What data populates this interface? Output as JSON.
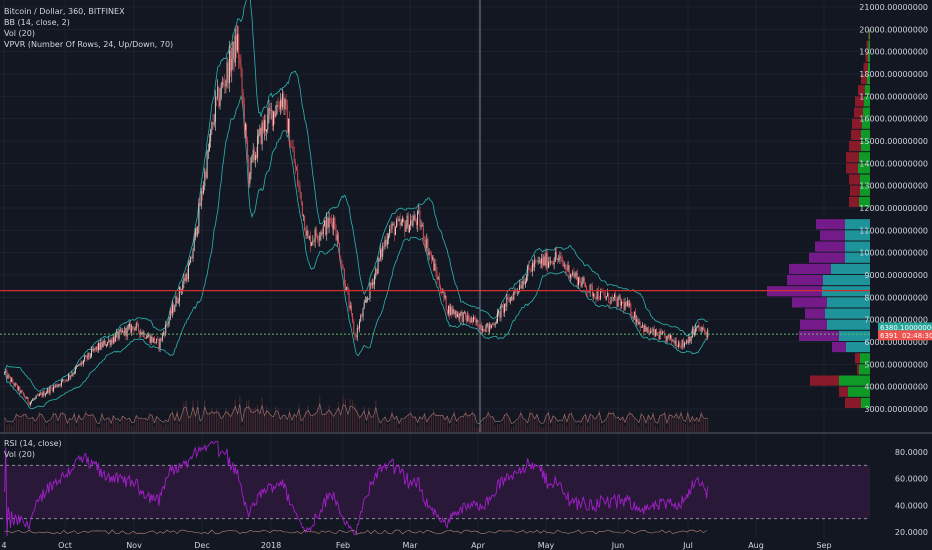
{
  "legend": {
    "title": "Bitcoin / Dollar, 360, BITFINEX",
    "bb": "BB (14, close, 2)",
    "vol": "Vol (20)",
    "vpvr": "VPVR (Number Of Rows, 24, Up/Down, 70)"
  },
  "rsi_legend": {
    "rsi": "RSI (14, close)",
    "vol": "Vol (20)"
  },
  "colors": {
    "background": "#131722",
    "grid": "#1e2230",
    "up_candle": "#e6d3cc",
    "down_candle": "#e0505a",
    "bollinger": "#2ab3b0",
    "resistance_line": "#d32f2f",
    "support_line": "#66bb6a",
    "vpvr_up": "#0fa028",
    "vpvr_down": "#8f1a2a",
    "vpvr_up_va": "#1f9aa0",
    "vpvr_down_va": "#7a1a8f",
    "rsi_line": "#a020c8",
    "rsi_band": "#2a1838",
    "volume": "#5a2e35"
  },
  "chart_data": [
    {
      "type": "line",
      "title": "Bitcoin / Dollar, 360, BITFINEX",
      "x_axis": {
        "tick_labels": [
          "4",
          "Oct",
          "Nov",
          "Dec",
          "2018",
          "Feb",
          "Mar",
          "Apr",
          "May",
          "Jun",
          "Jul",
          "Aug",
          "Sep"
        ]
      },
      "y_axis": {
        "position": "right",
        "range": [
          2400,
          21000
        ],
        "tick_values": [
          3000,
          4000,
          5000,
          6000,
          7000,
          8000,
          9000,
          10000,
          11000,
          12000,
          13000,
          14000,
          15000,
          16000,
          17000,
          18000,
          19000,
          20000,
          21000
        ],
        "tick_labels": [
          "3000.00000000",
          "4000.00000000",
          "5000.00000000",
          "6000.00000000",
          "7000.00000000",
          "8000.00000000",
          "9000.00000000",
          "10000.00000000",
          "11000.00000000",
          "12000.00000000",
          "13000.00000000",
          "14000.00000000",
          "15000.00000000",
          "16000.00000000",
          "17000.00000000",
          "18000.00000000",
          "19000.00000000",
          "20000.00000000",
          "21000.00000000"
        ]
      },
      "price_path": [
        {
          "x": "Sep 4",
          "y": 4600
        },
        {
          "x": "Sep 15",
          "y": 3300
        },
        {
          "x": "Oct 1",
          "y": 4300
        },
        {
          "x": "Oct 15",
          "y": 5700
        },
        {
          "x": "Nov 1",
          "y": 6700
        },
        {
          "x": "Nov 12",
          "y": 5900
        },
        {
          "x": "Nov 26",
          "y": 9500
        },
        {
          "x": "Dec 7",
          "y": 16500
        },
        {
          "x": "Dec 17",
          "y": 19500
        },
        {
          "x": "Dec 22",
          "y": 13500
        },
        {
          "x": "Dec 28",
          "y": 15500
        },
        {
          "x": "Jan 6",
          "y": 17000
        },
        {
          "x": "Jan 17",
          "y": 10500
        },
        {
          "x": "Jan 28",
          "y": 11500
        },
        {
          "x": "Feb 6",
          "y": 6200
        },
        {
          "x": "Feb 20",
          "y": 11000
        },
        {
          "x": "Mar 5",
          "y": 11500
        },
        {
          "x": "Mar 18",
          "y": 7500
        },
        {
          "x": "Apr 1",
          "y": 6800
        },
        {
          "x": "Apr 6",
          "y": 6600
        },
        {
          "x": "Apr 25",
          "y": 9400
        },
        {
          "x": "May 5",
          "y": 9800
        },
        {
          "x": "May 20",
          "y": 8300
        },
        {
          "x": "Jun 5",
          "y": 7600
        },
        {
          "x": "Jun 13",
          "y": 6500
        },
        {
          "x": "Jun 29",
          "y": 5900
        },
        {
          "x": "Jul 5",
          "y": 6600
        },
        {
          "x": "Jul 10",
          "y": 6400
        }
      ],
      "horizontal_lines": [
        {
          "y": 8300,
          "style": "solid",
          "color": "#d32f2f"
        },
        {
          "y": 6350,
          "style": "dashed",
          "color": "#66bb6a"
        }
      ],
      "price_tags": [
        {
          "label": "6380.10000000",
          "y": 6650,
          "color": "#26a69a"
        },
        {
          "label": "6391",
          "y": 6300,
          "color": "#ef5350"
        },
        {
          "label": "02:48:30",
          "y": 6300,
          "color": "#ef5350"
        }
      ],
      "vpvr_rows": [
        {
          "price": 19500,
          "up": 2,
          "down": 2
        },
        {
          "price": 19000,
          "up": 3,
          "down": 4
        },
        {
          "price": 18500,
          "up": 4,
          "down": 5
        },
        {
          "price": 18000,
          "up": 4,
          "down": 9
        },
        {
          "price": 17500,
          "up": 6,
          "down": 12
        },
        {
          "price": 17000,
          "up": 10,
          "down": 14
        },
        {
          "price": 16500,
          "up": 12,
          "down": 18
        },
        {
          "price": 16000,
          "up": 14,
          "down": 18
        },
        {
          "price": 15500,
          "up": 16,
          "down": 20
        },
        {
          "price": 15000,
          "up": 18,
          "down": 20
        },
        {
          "price": 14500,
          "up": 18,
          "down": 24
        },
        {
          "price": 14000,
          "up": 22,
          "down": 26
        },
        {
          "price": 13500,
          "up": 24,
          "down": 24
        },
        {
          "price": 13000,
          "up": 20,
          "down": 22
        },
        {
          "price": 12500,
          "up": 20,
          "down": 20
        },
        {
          "price": 12000,
          "up": 22,
          "down": 20
        },
        {
          "price": 11000,
          "up": 50,
          "down": 58,
          "value_area": true
        },
        {
          "price": 10500,
          "up": 50,
          "down": 50,
          "value_area": true
        },
        {
          "price": 10000,
          "up": 50,
          "down": 60,
          "value_area": true
        },
        {
          "price": 9500,
          "up": 50,
          "down": 72,
          "value_area": true
        },
        {
          "price": 9000,
          "up": 78,
          "down": 84,
          "value_area": true
        },
        {
          "price": 8500,
          "up": 94,
          "down": 72,
          "value_area": true
        },
        {
          "price": 8000,
          "up": 96,
          "down": 110,
          "value_area": true
        },
        {
          "price": 7500,
          "up": 86,
          "down": 70,
          "value_area": true
        },
        {
          "price": 7000,
          "up": 90,
          "down": 40,
          "value_area": true
        },
        {
          "price": 6500,
          "up": 86,
          "down": 54,
          "value_area": true
        },
        {
          "price": 6000,
          "up": 62,
          "down": 80,
          "value_area": true
        },
        {
          "price": 5500,
          "up": 48,
          "down": 28,
          "value_area": true
        },
        {
          "price": 5000,
          "up": 20,
          "down": 10
        },
        {
          "price": 4500,
          "up": 22,
          "down": 4
        },
        {
          "price": 4000,
          "up": 62,
          "down": 58
        },
        {
          "price": 3500,
          "up": 44,
          "down": 18
        },
        {
          "price": 3000,
          "up": 18,
          "down": 32
        }
      ]
    },
    {
      "type": "line",
      "title": "RSI (14, close)",
      "y_axis": {
        "range": [
          15,
          90
        ],
        "tick_values": [
          20,
          40,
          60,
          80
        ],
        "tick_labels": [
          "20.0000",
          "40.0000",
          "60.0000",
          "80.0000"
        ]
      },
      "bands": [
        30,
        70
      ]
    }
  ]
}
